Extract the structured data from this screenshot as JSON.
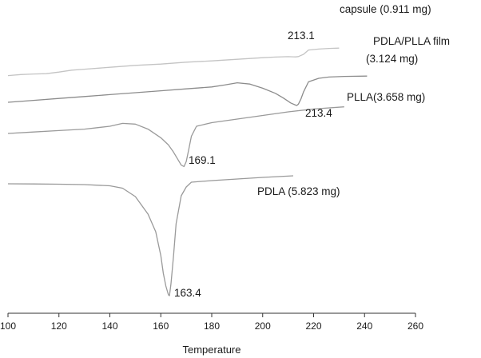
{
  "chart_data": {
    "type": "line",
    "title": "",
    "xlabel": "Temperature",
    "ylabel": "",
    "xlim": [
      100,
      260
    ],
    "xticks": [
      100,
      120,
      140,
      160,
      180,
      200,
      220,
      240,
      260
    ],
    "y_axis_shown": false,
    "grid": false,
    "legend": "none",
    "series": [
      {
        "name": "capsule (0.911 mg)",
        "color": "#c4c4c4",
        "label_lines": [
          "capsule (0.911 mg)"
        ],
        "peak_label": "213.1",
        "x": [
          100,
          105,
          110,
          115,
          120,
          125,
          130,
          140,
          150,
          160,
          170,
          180,
          190,
          200,
          205,
          210,
          212,
          213,
          214,
          216,
          218,
          222,
          226,
          230
        ],
        "y": [
          0.3,
          0.46,
          0.55,
          0.6,
          0.85,
          1.15,
          1.3,
          1.6,
          1.9,
          2.1,
          2.4,
          2.6,
          2.85,
          3.1,
          3.2,
          3.26,
          3.24,
          3.22,
          3.28,
          3.62,
          4.3,
          4.45,
          4.55,
          4.6
        ]
      },
      {
        "name": "PDLA/PLLA film (3.124 mg)",
        "color": "#8c8c8c",
        "label_lines": [
          "PDLA/PLLA film",
          "(3.124 mg)"
        ],
        "peak_label": "213.4",
        "x": [
          100,
          110,
          120,
          130,
          140,
          150,
          160,
          170,
          180,
          185,
          190,
          195,
          200,
          205,
          208,
          211,
          213,
          213.4,
          214,
          215,
          216,
          218,
          222,
          226,
          232,
          241
        ],
        "y": [
          0.0,
          0.3,
          0.6,
          0.9,
          1.2,
          1.5,
          1.8,
          2.1,
          2.4,
          2.7,
          3.05,
          2.85,
          2.2,
          1.4,
          0.7,
          -0.1,
          -0.45,
          -0.5,
          -0.3,
          0.5,
          1.6,
          3.2,
          3.75,
          3.95,
          4.05,
          4.1
        ]
      },
      {
        "name": "PLLA(3.658 mg)",
        "color": "#9a9a9a",
        "label_lines": [
          "PLLA(3.658 mg)"
        ],
        "peak_label": "169.1",
        "x": [
          100,
          110,
          120,
          130,
          135,
          140,
          145,
          150,
          155,
          160,
          163,
          165,
          167,
          168,
          169.1,
          170,
          171,
          172,
          174,
          180,
          190,
          200,
          210,
          220,
          232
        ],
        "y": [
          0.0,
          0.2,
          0.4,
          0.6,
          0.8,
          1.0,
          1.4,
          1.3,
          0.6,
          -0.6,
          -1.6,
          -2.6,
          -3.8,
          -4.4,
          -4.6,
          -3.9,
          -2.2,
          -0.4,
          1.0,
          1.5,
          2.0,
          2.5,
          3.0,
          3.4,
          3.7
        ]
      },
      {
        "name": "PDLA (5.823 mg)",
        "color": "#9a9a9a",
        "label_lines": [
          "PDLA (5.823 mg)"
        ],
        "peak_label": "163.4",
        "x": [
          100,
          110,
          120,
          130,
          140,
          145,
          150,
          155,
          158,
          160,
          161,
          162,
          163,
          163.4,
          164,
          165,
          166,
          168,
          170,
          172,
          180,
          190,
          200,
          212
        ],
        "y": [
          0.0,
          -0.02,
          -0.05,
          -0.1,
          -0.25,
          -0.55,
          -1.6,
          -3.8,
          -6.0,
          -9.0,
          -11.2,
          -12.8,
          -13.9,
          -14.0,
          -12.5,
          -9.0,
          -5.0,
          -1.5,
          -0.4,
          0.2,
          0.4,
          0.6,
          0.8,
          1.0
        ]
      }
    ]
  }
}
